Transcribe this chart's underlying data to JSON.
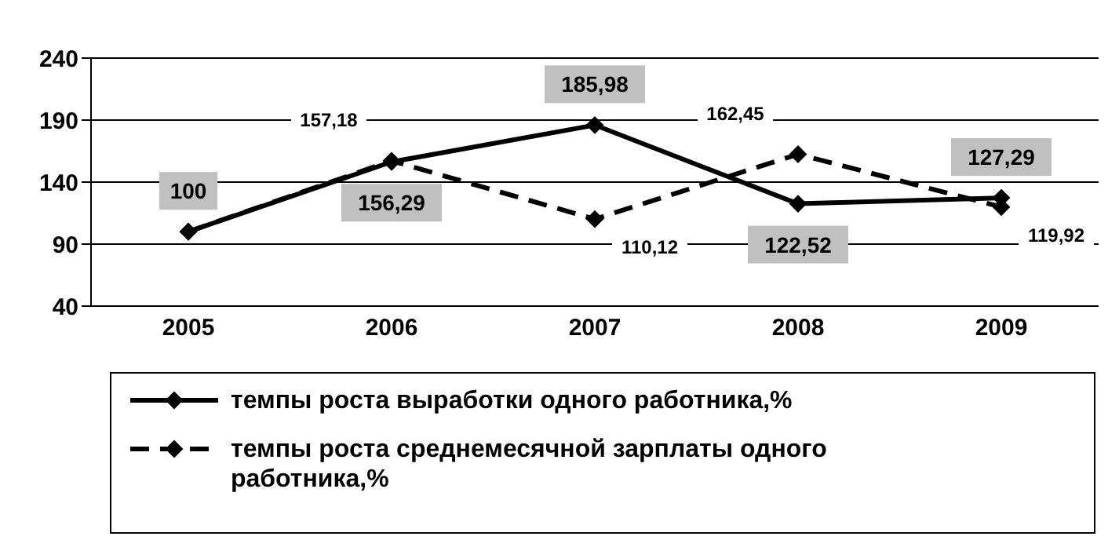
{
  "chart_data": {
    "type": "line",
    "categories": [
      "2005",
      "2006",
      "2007",
      "2008",
      "2009"
    ],
    "series": [
      {
        "name": "темпы роста выработки одного работника,%",
        "color": "#000000",
        "line_style": "solid",
        "values": [
          100,
          156.29,
          185.98,
          122.52,
          127.29
        ],
        "value_labels": [
          "100",
          "156,29",
          "185,98",
          "122,52",
          "127,29"
        ]
      },
      {
        "name": "темпы роста среднемесячной зарплаты одного работника,%",
        "color": "#000000",
        "line_style": "dashed",
        "values": [
          100,
          157.18,
          110.12,
          162.45,
          119.92
        ],
        "value_labels": [
          null,
          "157,18",
          "110,12",
          "162,45",
          "119,92"
        ]
      }
    ],
    "ylim": [
      40,
      240
    ],
    "yticks": [
      40,
      90,
      140,
      190,
      240
    ],
    "grid": "y",
    "marker": "diamond",
    "legend": "bottom"
  }
}
